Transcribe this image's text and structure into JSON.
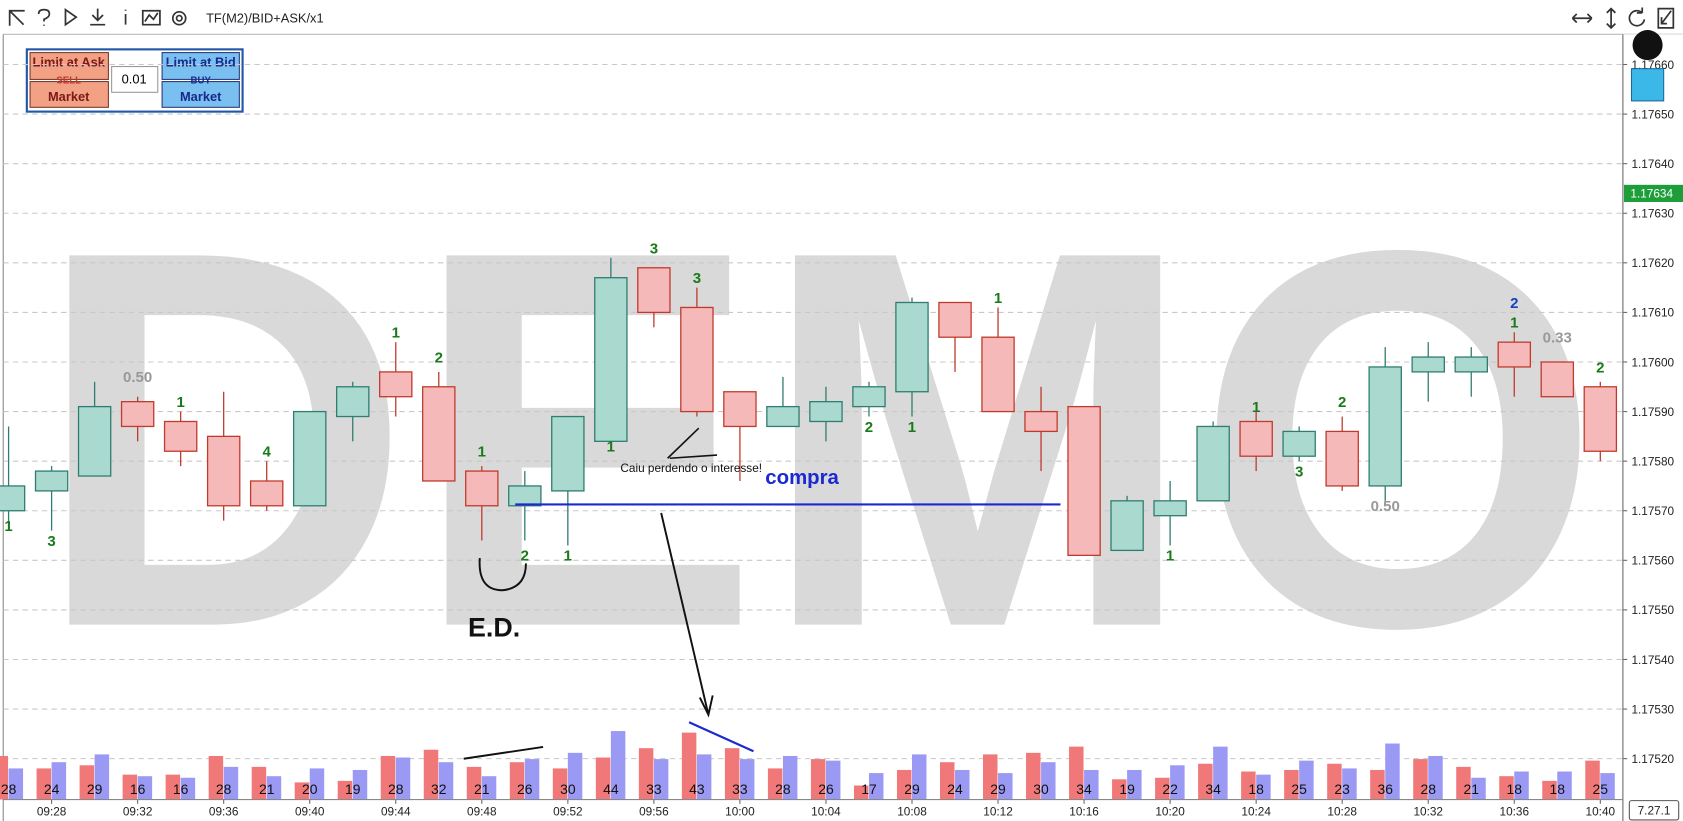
{
  "ui": {
    "toolbar_title": "TF(M2)/BID+ASK/x1",
    "sell_limit": "Limit at Ask",
    "sell": "SELL",
    "sell_market": "Market",
    "quantity": "0.01",
    "buy_limit": "Limit at Bid",
    "buy": "BUY",
    "buy_market": "Market",
    "watermark": "DEMO",
    "version": "7.27.1",
    "note": "Caiu perdendo o interesse!",
    "note2": "compra",
    "note3": "E.D."
  },
  "chart_data": {
    "type": "candlestick",
    "categories": [
      null,
      "09:28",
      null,
      "09:32",
      null,
      "09:36",
      null,
      "09:40",
      null,
      "09:44",
      null,
      "09:48",
      null,
      "09:52",
      null,
      "09:56",
      null,
      "10:00",
      null,
      "10:04",
      null,
      "10:08",
      null,
      "10:12",
      null,
      "10:16",
      null,
      "10:20",
      null,
      "10:24",
      null,
      "10:28",
      null,
      "10:32",
      null,
      "10:36",
      null,
      "10:40"
    ],
    "open": [
      1.1757,
      1.17574,
      1.17577,
      1.17592,
      1.17588,
      1.17585,
      1.17576,
      1.17571,
      1.17589,
      1.17598,
      1.17595,
      1.17578,
      1.17571,
      1.17574,
      1.17584,
      1.17619,
      1.17611,
      1.17594,
      1.17587,
      1.17588,
      1.17591,
      1.17594,
      1.17612,
      1.17605,
      1.1759,
      1.17591,
      1.17562,
      1.17569,
      1.17572,
      1.17588,
      1.17581,
      1.17586,
      1.17575,
      1.17598,
      1.17598,
      1.17604,
      1.176,
      1.17595
    ],
    "high": [
      1.17587,
      1.17579,
      1.17596,
      1.17593,
      1.1759,
      1.17594,
      1.1758,
      1.1759,
      1.17596,
      1.17604,
      1.17598,
      1.17579,
      1.17578,
      1.17589,
      1.17621,
      1.17619,
      1.17615,
      1.17594,
      1.17597,
      1.17595,
      1.17596,
      1.17613,
      1.17612,
      1.17611,
      1.17595,
      1.17591,
      1.17573,
      1.17576,
      1.17588,
      1.1759,
      1.17587,
      1.17589,
      1.17603,
      1.17604,
      1.17603,
      1.17606,
      1.176,
      1.17596
    ],
    "low": [
      1.17567,
      1.17566,
      1.17577,
      1.17584,
      1.17579,
      1.17568,
      1.1757,
      1.17571,
      1.17584,
      1.17589,
      1.17576,
      1.17564,
      1.17564,
      1.17563,
      1.17584,
      1.17607,
      1.17589,
      1.17576,
      1.17587,
      1.17584,
      1.17589,
      1.17589,
      1.17598,
      1.1759,
      1.17578,
      1.17561,
      1.17562,
      1.17563,
      1.17572,
      1.17578,
      1.1758,
      1.17574,
      1.17572,
      1.17592,
      1.17593,
      1.17593,
      1.17593,
      1.1758
    ],
    "close": [
      1.17575,
      1.17578,
      1.17591,
      1.17587,
      1.17582,
      1.17571,
      1.17571,
      1.1759,
      1.17595,
      1.17593,
      1.17576,
      1.17571,
      1.17575,
      1.17589,
      1.17617,
      1.1761,
      1.1759,
      1.17587,
      1.17591,
      1.17592,
      1.17595,
      1.17612,
      1.17605,
      1.1759,
      1.17586,
      1.17561,
      1.17572,
      1.17572,
      1.17587,
      1.17581,
      1.17586,
      1.17575,
      1.17599,
      1.17601,
      1.17601,
      1.17599,
      1.17593,
      1.17582
    ],
    "up_color": "#a9d9cf",
    "up_border": "#2e7d6e",
    "down_color": "#f6b9b9",
    "down_border": "#c0392b",
    "candle_labels": [
      [
        {
          "text": "1",
          "price": 1.17567,
          "color": "#1a7a1a"
        }
      ],
      [
        {
          "text": "3",
          "price": 1.17564,
          "color": "#1a7a1a"
        }
      ],
      [],
      [
        {
          "text": "0.50",
          "price": 1.17597,
          "color": "#999999"
        }
      ],
      [
        {
          "text": "1",
          "price": 1.17592,
          "color": "#1a7a1a"
        }
      ],
      [],
      [
        {
          "text": "4",
          "price": 1.17582,
          "color": "#1a7a1a"
        }
      ],
      [],
      [],
      [
        {
          "text": "1",
          "price": 1.17606,
          "color": "#1a7a1a"
        }
      ],
      [
        {
          "text": "2",
          "price": 1.17601,
          "color": "#1a7a1a"
        }
      ],
      [
        {
          "text": "1",
          "price": 1.17582,
          "color": "#1a7a1a"
        }
      ],
      [
        {
          "text": "2",
          "price": 1.17561,
          "color": "#1a7a1a"
        }
      ],
      [
        {
          "text": "1",
          "price": 1.17561,
          "color": "#1a7a1a"
        }
      ],
      [
        {
          "text": "1",
          "price": 1.17583,
          "color": "#1a7a1a"
        }
      ],
      [
        {
          "text": "3",
          "price": 1.17623,
          "color": "#1a7a1a"
        }
      ],
      [
        {
          "text": "3",
          "price": 1.17617,
          "color": "#1a7a1a"
        }
      ],
      [],
      [],
      [],
      [
        {
          "text": "2",
          "price": 1.17587,
          "color": "#1a7a1a"
        }
      ],
      [
        {
          "text": "1",
          "price": 1.17587,
          "color": "#1a7a1a"
        }
      ],
      [],
      [
        {
          "text": "1",
          "price": 1.17613,
          "color": "#1a7a1a"
        }
      ],
      [],
      [],
      [],
      [
        {
          "text": "1",
          "price": 1.17561,
          "color": "#1a7a1a"
        }
      ],
      [],
      [
        {
          "text": "1",
          "price": 1.17591,
          "color": "#1a7a1a"
        }
      ],
      [
        {
          "text": "3",
          "price": 1.17578,
          "color": "#1a7a1a"
        }
      ],
      [
        {
          "text": "2",
          "price": 1.17592,
          "color": "#1a7a1a"
        }
      ],
      [
        {
          "text": "0.50",
          "price": 1.17571,
          "color": "#999999"
        }
      ],
      [],
      [],
      [
        {
          "text": "2",
          "price": 1.17612,
          "color": "#1a3fbf"
        },
        {
          "text": "1",
          "price": 1.17608,
          "color": "#1a7a1a"
        }
      ],
      [
        {
          "text": "0.33",
          "price": 1.17605,
          "color": "#999999"
        }
      ],
      [
        {
          "text": "2",
          "price": 1.17599,
          "color": "#1a7a1a"
        }
      ]
    ],
    "ylim": [
      1.17515,
      1.17665
    ],
    "yticks": [
      {
        "value": 1.1752,
        "label": "1.17520"
      },
      {
        "value": 1.1753,
        "label": "1.17530"
      },
      {
        "value": 1.1754,
        "label": "1.17540"
      },
      {
        "value": 1.1755,
        "label": "1.17550"
      },
      {
        "value": 1.1756,
        "label": "1.17560"
      },
      {
        "value": 1.1757,
        "label": "1.17570"
      },
      {
        "value": 1.1758,
        "label": "1.17580"
      },
      {
        "value": 1.1759,
        "label": "1.17590"
      },
      {
        "value": 1.176,
        "label": "1.17600"
      },
      {
        "value": 1.1761,
        "label": "1.17610"
      },
      {
        "value": 1.1762,
        "label": "1.17620"
      },
      {
        "value": 1.1763,
        "label": "1.17630"
      },
      {
        "value": 1.1764,
        "label": "1.17640"
      },
      {
        "value": 1.1765,
        "label": "1.17650"
      },
      {
        "value": 1.1766,
        "label": "1.17660"
      }
    ],
    "grid": true,
    "last_price": 1.17634,
    "last_price_color": "#1e9e3a",
    "volume": {
      "sell": {
        "color": "#f07878",
        "values": [
          28,
          20,
          22,
          16,
          16,
          28,
          21,
          11,
          12,
          28,
          32,
          21,
          24,
          20,
          27,
          33,
          43,
          33,
          20,
          26,
          9,
          19,
          24,
          29,
          30,
          34,
          13,
          14,
          23,
          18,
          19,
          23,
          19,
          26,
          21,
          15,
          12,
          25
        ]
      },
      "buy": {
        "color": "#9a9af5",
        "values": [
          20,
          24,
          29,
          15,
          14,
          21,
          15,
          20,
          19,
          27,
          24,
          15,
          26,
          30,
          44,
          26,
          29,
          26,
          28,
          25,
          17,
          29,
          19,
          17,
          24,
          19,
          19,
          22,
          34,
          16,
          25,
          20,
          36,
          28,
          14,
          18,
          18,
          17
        ]
      },
      "totals": [
        28,
        24,
        29,
        16,
        16,
        28,
        21,
        20,
        19,
        28,
        32,
        21,
        26,
        30,
        44,
        33,
        43,
        33,
        28,
        26,
        17,
        29,
        24,
        29,
        30,
        34,
        19,
        22,
        34,
        18,
        25,
        23,
        36,
        28,
        21,
        18,
        18,
        25
      ]
    }
  }
}
